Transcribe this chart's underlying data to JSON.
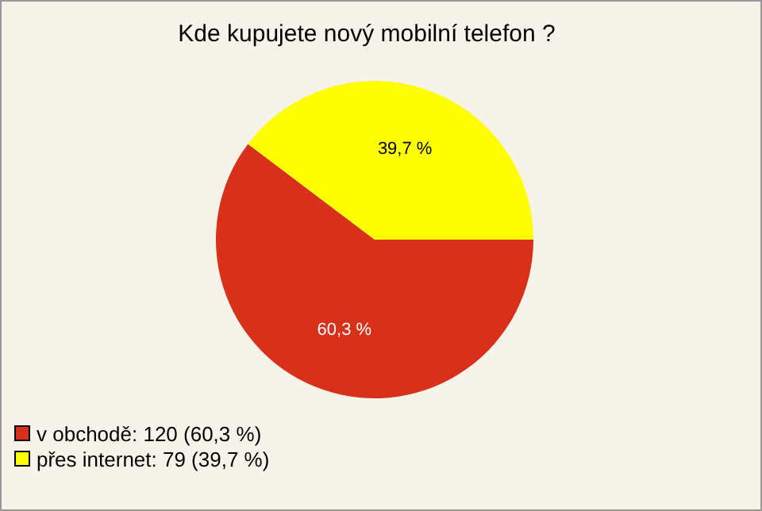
{
  "chart_data": {
    "type": "pie",
    "title": "Kde kupujete nový mobilní telefon ?",
    "categories": [
      "v obchodě: 120 (60,3 %)",
      "přes internet: 79 (39,7 %)"
    ],
    "values": [
      60.3,
      39.7
    ],
    "colors": [
      "#d8301a",
      "#ffff00"
    ],
    "value_labels": [
      "60,3 %",
      "39,7 %"
    ],
    "legend": "bottom left"
  }
}
